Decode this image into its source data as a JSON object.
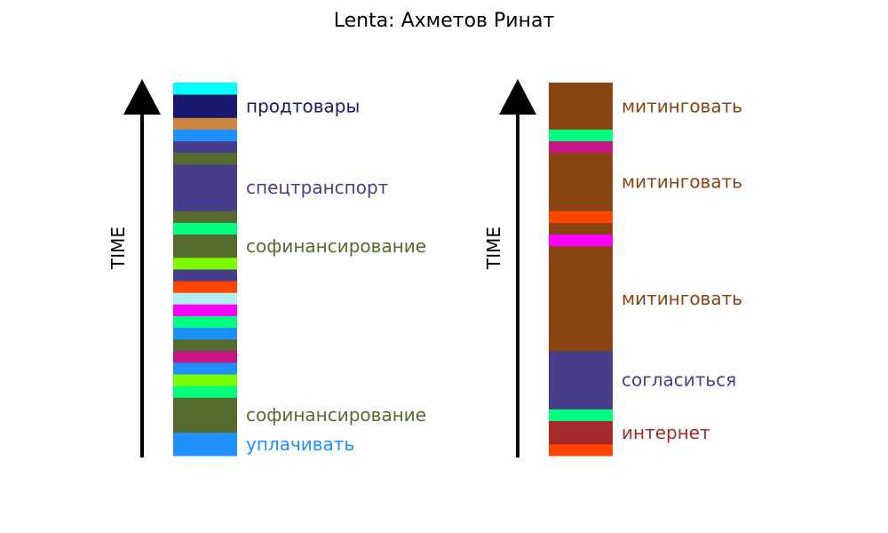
{
  "title": "Lenta: Ахметов Ринат",
  "chart_data": {
    "type": "stacked-timeline",
    "title": "Lenta: Ахметов Ринат",
    "axis_label": "TIME",
    "columns": [
      {
        "segments_bottom_to_top": [
          {
            "span": 2,
            "color": "#1e90ff",
            "label": "уплачивать"
          },
          {
            "span": 3,
            "color": "#556b2f",
            "label": "софинансирование"
          },
          {
            "span": 1,
            "color": "#00ff7f",
            "label": ""
          },
          {
            "span": 1,
            "color": "#7cfc00",
            "label": ""
          },
          {
            "span": 1,
            "color": "#1e90ff",
            "label": ""
          },
          {
            "span": 1,
            "color": "#c71585",
            "label": ""
          },
          {
            "span": 1,
            "color": "#556b2f",
            "label": ""
          },
          {
            "span": 1,
            "color": "#1e90ff",
            "label": ""
          },
          {
            "span": 1,
            "color": "#00ff7f",
            "label": ""
          },
          {
            "span": 1,
            "color": "#ff00ff",
            "label": ""
          },
          {
            "span": 1,
            "color": "#afeeee",
            "label": ""
          },
          {
            "span": 1,
            "color": "#ff4500",
            "label": ""
          },
          {
            "span": 1,
            "color": "#483d8b",
            "label": ""
          },
          {
            "span": 1,
            "color": "#7cfc00",
            "label": ""
          },
          {
            "span": 2,
            "color": "#556b2f",
            "label": "софинансирование"
          },
          {
            "span": 1,
            "color": "#00ff7f",
            "label": ""
          },
          {
            "span": 1,
            "color": "#556b2f",
            "label": ""
          },
          {
            "span": 4,
            "color": "#483d8b",
            "label": "спецтранспорт"
          },
          {
            "span": 1,
            "color": "#556b2f",
            "label": ""
          },
          {
            "span": 1,
            "color": "#483d8b",
            "label": ""
          },
          {
            "span": 1,
            "color": "#1e90ff",
            "label": ""
          },
          {
            "span": 1,
            "color": "#cd853f",
            "label": ""
          },
          {
            "span": 2,
            "color": "#191970",
            "label": "продтовары"
          },
          {
            "span": 1,
            "color": "#00ffff",
            "label": ""
          }
        ]
      },
      {
        "segments_bottom_to_top": [
          {
            "span": 1,
            "color": "#ff4500",
            "label": ""
          },
          {
            "span": 2,
            "color": "#a52a2a",
            "label": "интернет"
          },
          {
            "span": 1,
            "color": "#00ff7f",
            "label": ""
          },
          {
            "span": 5,
            "color": "#483d8b",
            "label": "согласиться"
          },
          {
            "span": 9,
            "color": "#8b4513",
            "label": "митинговать"
          },
          {
            "span": 1,
            "color": "#ff00ff",
            "label": ""
          },
          {
            "span": 1,
            "color": "#8b4513",
            "label": ""
          },
          {
            "span": 1,
            "color": "#ff4500",
            "label": ""
          },
          {
            "span": 5,
            "color": "#8b4513",
            "label": "митинговать"
          },
          {
            "span": 1,
            "color": "#c71585",
            "label": ""
          },
          {
            "span": 1,
            "color": "#00ff7f",
            "label": ""
          },
          {
            "span": 4,
            "color": "#8b4513",
            "label": "митинговать"
          }
        ]
      }
    ]
  }
}
